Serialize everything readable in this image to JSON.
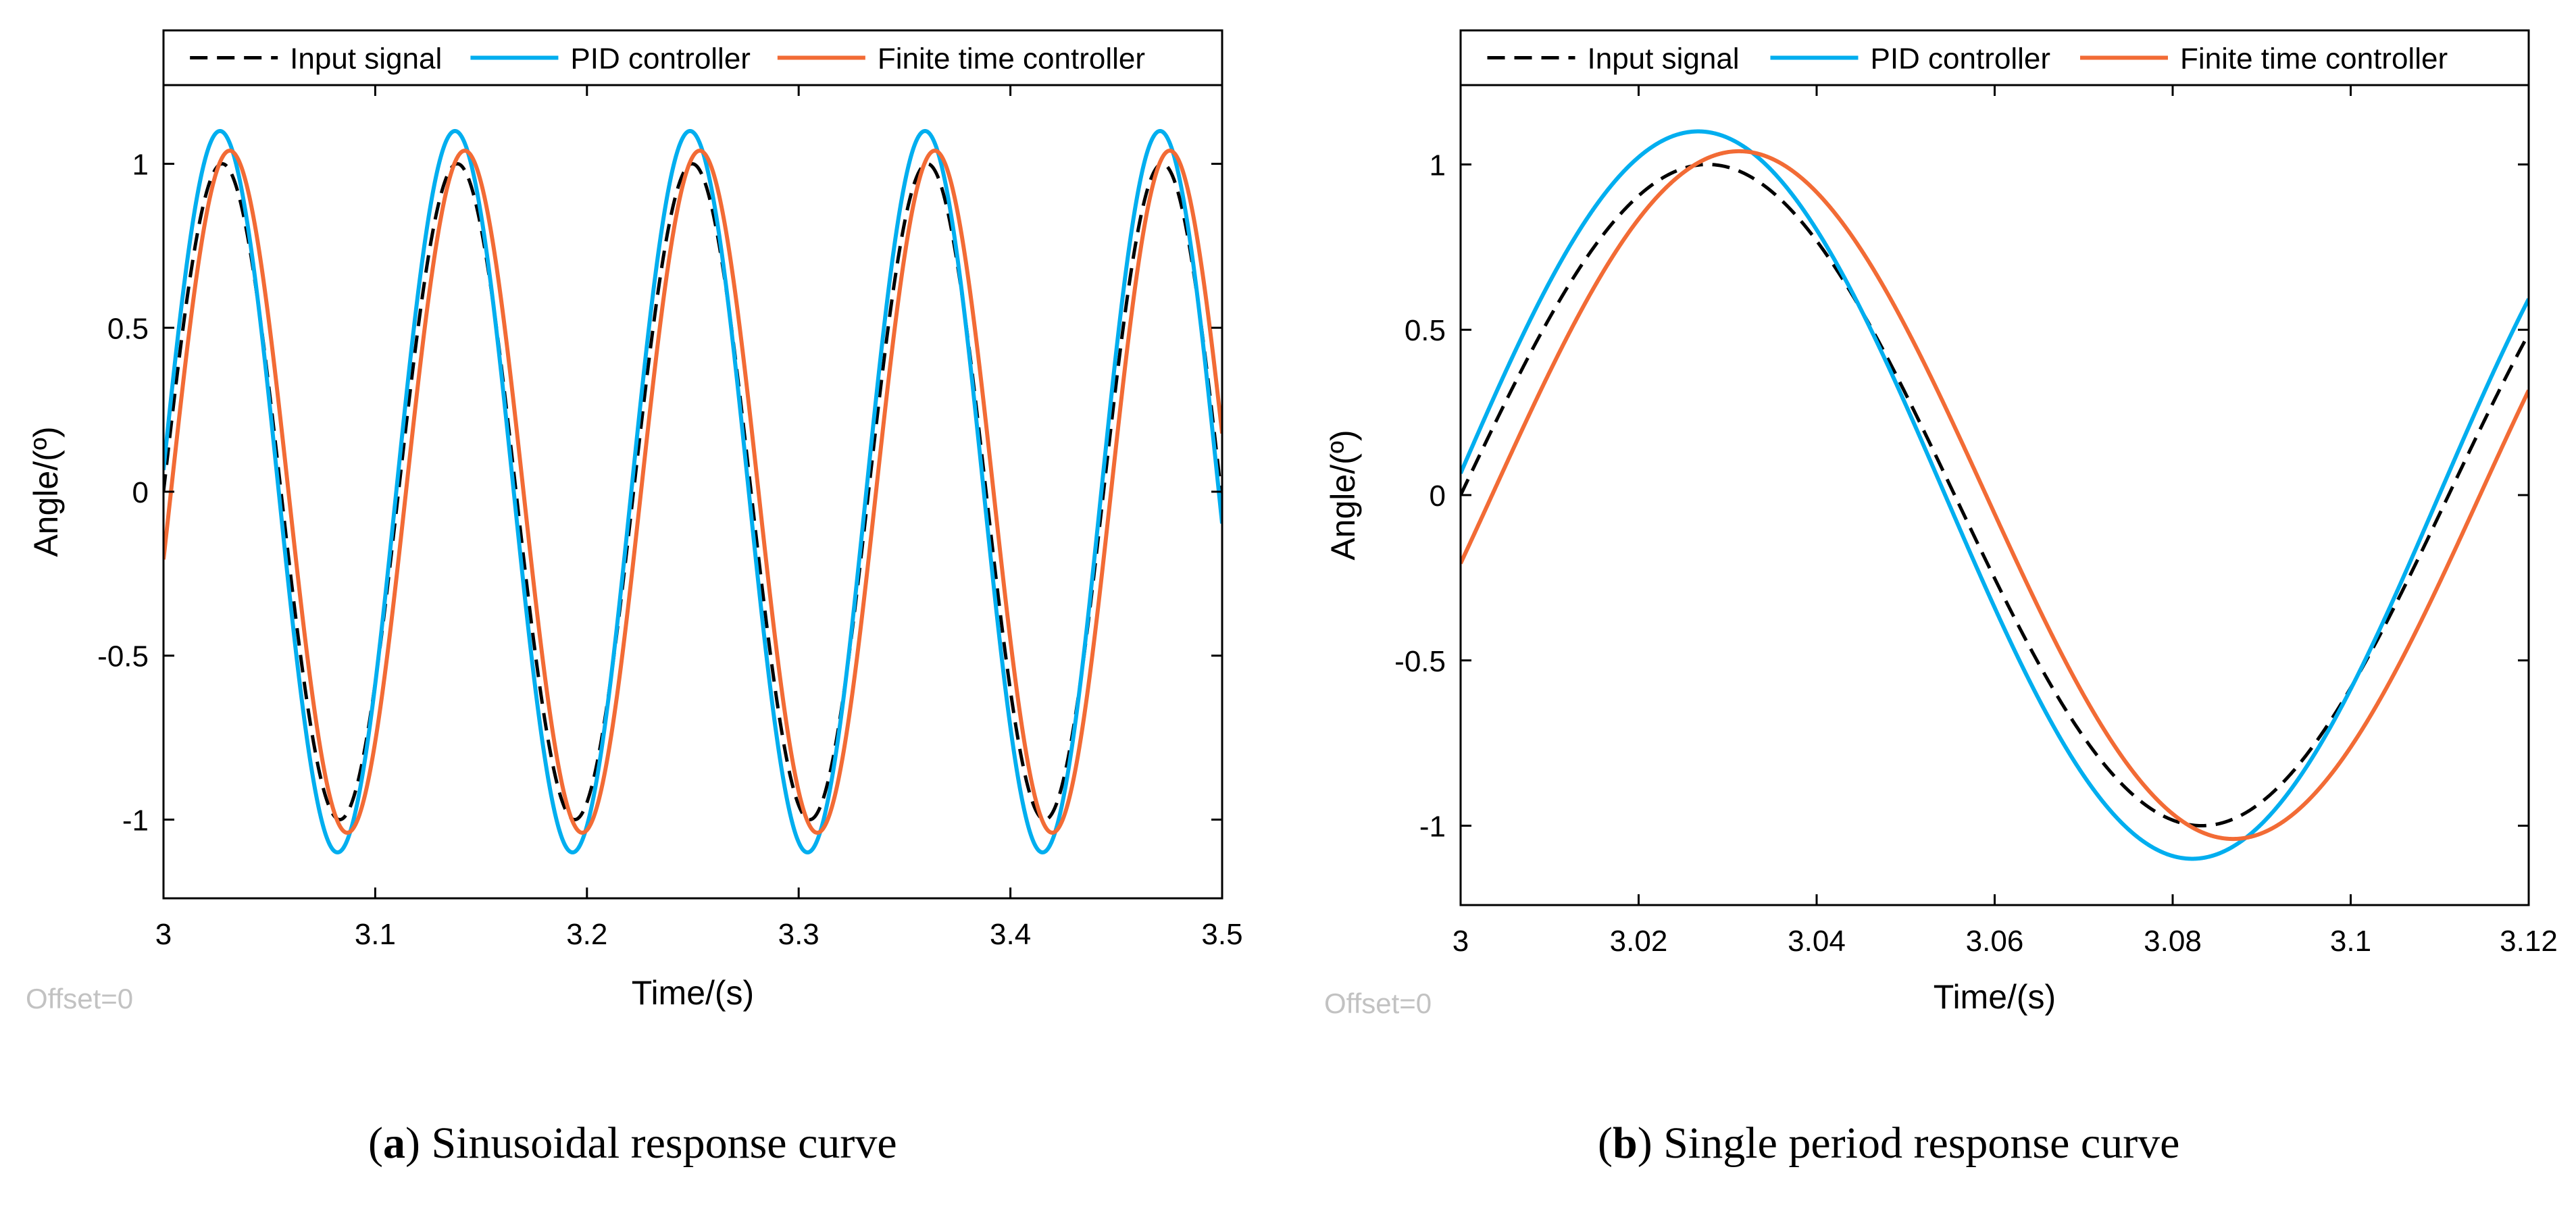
{
  "colors": {
    "input": "#000000",
    "pid": "#00aeef",
    "finite": "#f26b35",
    "axis": "#000000",
    "offset_text": "#c2c2c2"
  },
  "chart_data": [
    {
      "type": "line",
      "panel": "a",
      "caption_letter": "a",
      "caption_text": "Sinusoidal response curve",
      "xlabel": "Time/(s)",
      "ylabel": "Angle/(º)",
      "offset_label": "Offset=0",
      "xlim": [
        3,
        3.5
      ],
      "ylim": [
        -1.24,
        1.24
      ],
      "xticks": [
        3,
        3.1,
        3.2,
        3.3,
        3.4,
        3.5
      ],
      "xtick_labels": [
        "3",
        "3.1",
        "3.2",
        "3.3",
        "3.4",
        "3.5"
      ],
      "yticks": [
        1,
        0.5,
        0,
        -0.5,
        -1
      ],
      "ytick_labels": [
        "1",
        "0.5",
        "0",
        "-0.5",
        "-1"
      ],
      "legend": [
        "Input signal",
        "PID controller",
        "Finite time controller"
      ],
      "legend_position": "top (above plot area)",
      "period": 0.111,
      "series": [
        {
          "name": "Input signal",
          "amplitude": 1.0,
          "phase_lag": 0.0,
          "style": "dashed"
        },
        {
          "name": "PID controller",
          "amplitude": 1.1,
          "phase_lag": -0.06,
          "style": "solid"
        },
        {
          "name": "Finite time controller",
          "amplitude": 1.04,
          "phase_lag": 0.2,
          "style": "solid"
        }
      ]
    },
    {
      "type": "line",
      "panel": "b",
      "caption_letter": "b",
      "caption_text": "Single period response curve",
      "xlabel": "Time/(s)",
      "ylabel": "Angle/(º)",
      "offset_label": "Offset=0",
      "xlim": [
        3,
        3.12
      ],
      "ylim": [
        -1.24,
        1.24
      ],
      "xticks": [
        3,
        3.02,
        3.04,
        3.06,
        3.08,
        3.1,
        3.12
      ],
      "xtick_labels": [
        "3",
        "3.02",
        "3.04",
        "3.06",
        "3.08",
        "3.1",
        "3.12"
      ],
      "yticks": [
        1,
        0.5,
        0,
        -0.5,
        -1
      ],
      "ytick_labels": [
        "1",
        "0.5",
        "0",
        "-0.5",
        "-1"
      ],
      "legend": [
        "Input signal",
        "PID controller",
        "Finite time controller"
      ],
      "legend_position": "top (above plot area)",
      "period": 0.111,
      "series": [
        {
          "name": "Input signal",
          "amplitude": 1.0,
          "phase_lag": 0.0,
          "style": "dashed"
        },
        {
          "name": "PID controller",
          "amplitude": 1.1,
          "phase_lag": -0.06,
          "style": "solid"
        },
        {
          "name": "Finite time controller",
          "amplitude": 1.04,
          "phase_lag": 0.2,
          "style": "solid"
        }
      ]
    }
  ]
}
